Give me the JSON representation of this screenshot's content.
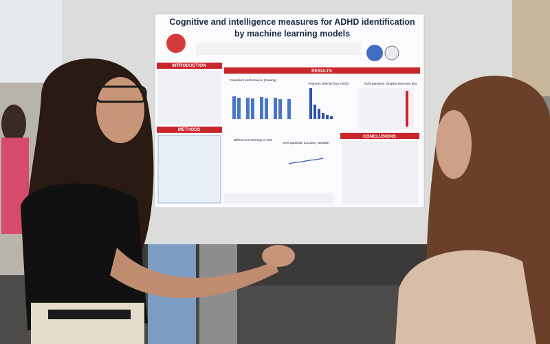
{
  "poster": {
    "title_lines": [
      "Cognitive and intelligence measures for ADHD identification",
      "by machine learning models"
    ],
    "sections": [
      "INTRODUCTION",
      "METHODS",
      "RESULTS",
      "CONCLUSIONS"
    ],
    "figure_titles": [
      "Classifiers performance (training)",
      "Features selected by LASSO",
      "SVM gaussian Shapley summary plot",
      "Differences Training vs Test",
      "SVM gaussian accuracy variation"
    ]
  }
}
